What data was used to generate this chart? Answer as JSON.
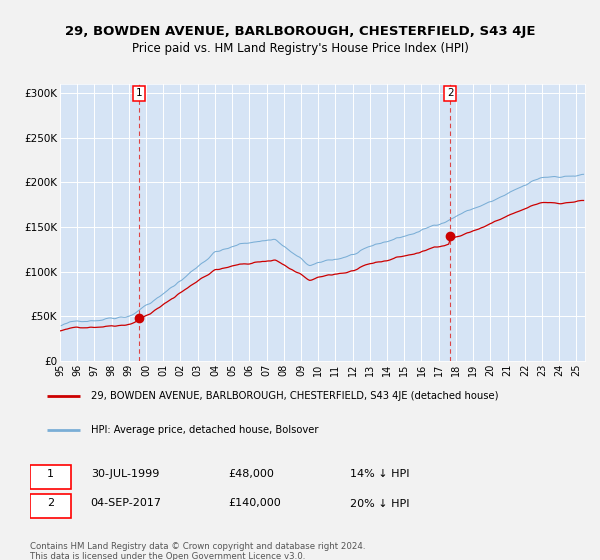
{
  "title_line1": "29, BOWDEN AVENUE, BARLBOROUGH, CHESTERFIELD, S43 4JE",
  "title_line2": "Price paid vs. HM Land Registry's House Price Index (HPI)",
  "background_color": "#d6e4f5",
  "hpi_color": "#7aaed6",
  "property_color": "#cc0000",
  "sale1_price": 48000,
  "sale1_year": 1999.583,
  "sale1_date": "30-JUL-1999",
  "sale1_pct": "14% ↓ HPI",
  "sale2_price": 140000,
  "sale2_year": 2017.667,
  "sale2_date": "04-SEP-2017",
  "sale2_pct": "20% ↓ HPI",
  "legend_property": "29, BOWDEN AVENUE, BARLBOROUGH, CHESTERFIELD, S43 4JE (detached house)",
  "legend_hpi": "HPI: Average price, detached house, Bolsover",
  "footnote": "Contains HM Land Registry data © Crown copyright and database right 2024.\nThis data is licensed under the Open Government Licence v3.0.",
  "ylim": [
    0,
    310000
  ],
  "yticks": [
    0,
    50000,
    100000,
    150000,
    200000,
    250000,
    300000
  ],
  "ytick_labels": [
    "£0",
    "£50K",
    "£100K",
    "£150K",
    "£200K",
    "£250K",
    "£300K"
  ],
  "fig_bg": "#f2f2f2",
  "grid_color": "white",
  "dashed_color": "#dd4444"
}
